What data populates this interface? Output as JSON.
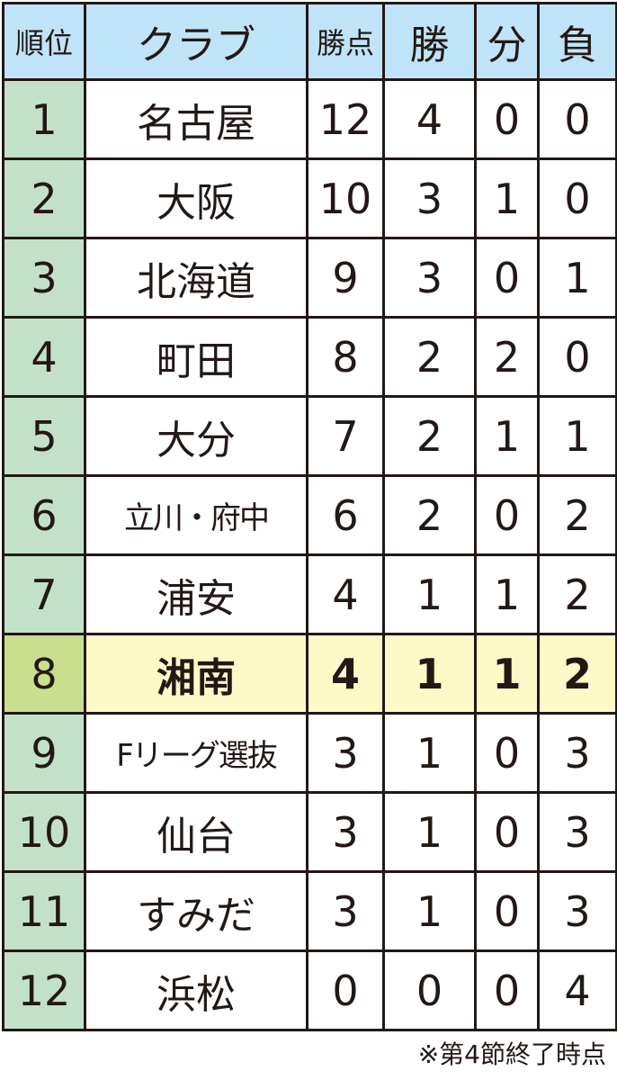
{
  "table": {
    "headers": [
      "順位",
      "クラブ",
      "勝点",
      "勝",
      "分",
      "負"
    ],
    "rows": [
      {
        "rank": "1",
        "club": "名古屋",
        "points": "12",
        "wins": "4",
        "draws": "0",
        "losses": "0"
      },
      {
        "rank": "2",
        "club": "大阪",
        "points": "10",
        "wins": "3",
        "draws": "1",
        "losses": "0"
      },
      {
        "rank": "3",
        "club": "北海道",
        "points": "9",
        "wins": "3",
        "draws": "0",
        "losses": "1"
      },
      {
        "rank": "4",
        "club": "町田",
        "points": "8",
        "wins": "2",
        "draws": "2",
        "losses": "0"
      },
      {
        "rank": "5",
        "club": "大分",
        "points": "7",
        "wins": "2",
        "draws": "1",
        "losses": "1"
      },
      {
        "rank": "6",
        "club": "立川・府中",
        "points": "6",
        "wins": "2",
        "draws": "0",
        "losses": "2"
      },
      {
        "rank": "7",
        "club": "浦安",
        "points": "4",
        "wins": "1",
        "draws": "1",
        "losses": "2"
      },
      {
        "rank": "8",
        "club": "湘南",
        "points": "4",
        "wins": "1",
        "draws": "1",
        "losses": "2",
        "highlighted": true
      },
      {
        "rank": "9",
        "club": "Fリーグ選抜",
        "points": "3",
        "wins": "1",
        "draws": "0",
        "losses": "3"
      },
      {
        "rank": "10",
        "club": "仙台",
        "points": "3",
        "wins": "1",
        "draws": "0",
        "losses": "3"
      },
      {
        "rank": "11",
        "club": "すみだ",
        "points": "3",
        "wins": "1",
        "draws": "0",
        "losses": "3"
      },
      {
        "rank": "12",
        "club": "浜松",
        "points": "0",
        "wins": "0",
        "draws": "0",
        "losses": "4"
      }
    ]
  },
  "footnote": "※第4節終了時点",
  "colors": {
    "header_bg": "#bfe4f7",
    "rank_bg": "#c3e1c9",
    "highlight_bg": "#fdfac8",
    "highlight_rank_bg": "#c9df8d",
    "border": "#231815"
  }
}
